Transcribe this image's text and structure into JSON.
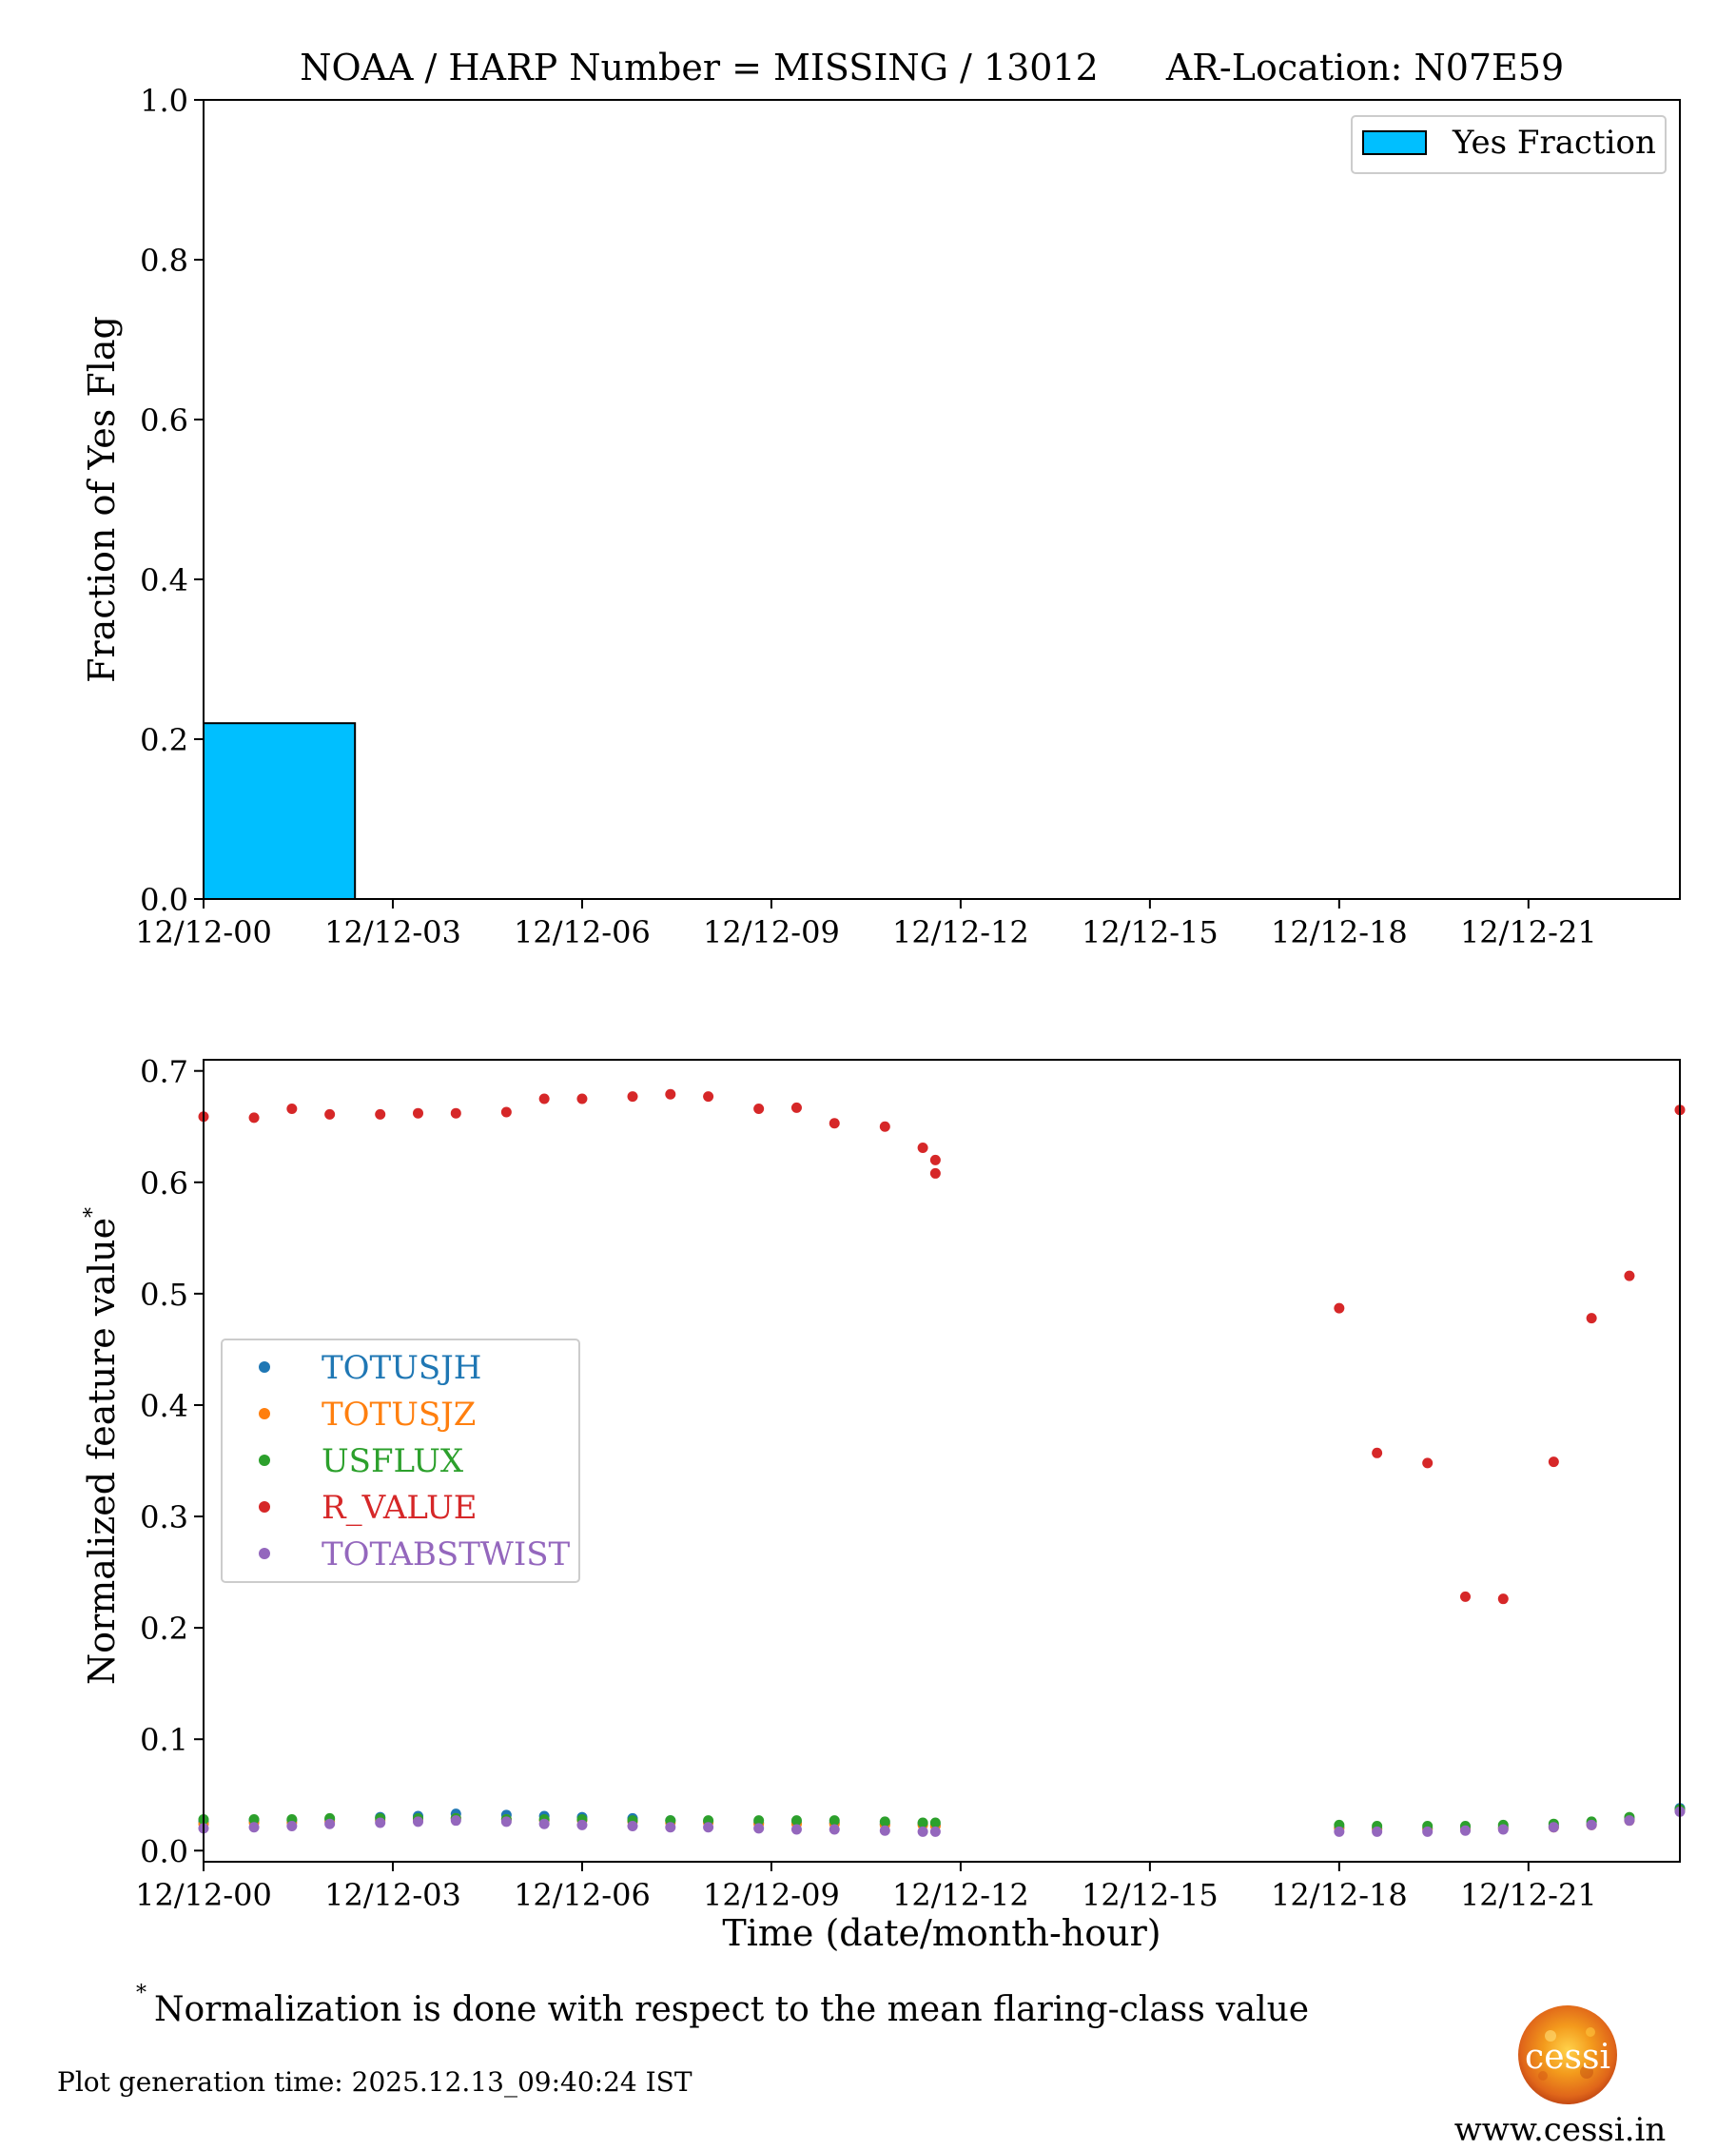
{
  "chart_data": [
    {
      "type": "bar",
      "title_left": "NOAA / HARP Number = MISSING / 13012",
      "title_right": "AR-Location: N07E59",
      "xlabel": "",
      "ylabel": "Fraction of Yes Flag",
      "ylim": [
        0,
        1.0
      ],
      "yticks": [
        "0.0",
        "0.2",
        "0.4",
        "0.6",
        "0.8",
        "1.0"
      ],
      "xticks": [
        "12/12-00",
        "12/12-03",
        "12/12-06",
        "12/12-09",
        "12/12-12",
        "12/12-15",
        "12/12-18",
        "12/12-21"
      ],
      "xlim_hours": [
        0,
        23.4
      ],
      "bars": [
        {
          "start_hour": 0,
          "end_hour": 2.4,
          "value": 0.22
        }
      ],
      "legend": {
        "label": "Yes Fraction",
        "position": "top-right"
      },
      "bar_color": "#00bfff"
    },
    {
      "type": "scatter",
      "xlabel": "Time (date/month-hour)",
      "ylabel": "Normalized feature value",
      "ylabel_sup": "*",
      "ylim": [
        -0.01,
        0.71
      ],
      "yticks": [
        "0.0",
        "0.1",
        "0.2",
        "0.3",
        "0.4",
        "0.5",
        "0.6",
        "0.7"
      ],
      "xticks": [
        "12/12-00",
        "12/12-03",
        "12/12-06",
        "12/12-09",
        "12/12-12",
        "12/12-15",
        "12/12-18",
        "12/12-21"
      ],
      "xlim_hours": [
        0,
        23.4
      ],
      "legend_position": "center-left",
      "series": [
        {
          "name": "TOTUSJH",
          "color": "#1f77b4",
          "points": [
            [
              0,
              0.026
            ],
            [
              0.8,
              0.027
            ],
            [
              1.4,
              0.027
            ],
            [
              2.0,
              0.028
            ],
            [
              2.8,
              0.03
            ],
            [
              3.4,
              0.031
            ],
            [
              4.0,
              0.033
            ],
            [
              4.8,
              0.032
            ],
            [
              5.4,
              0.031
            ],
            [
              6.0,
              0.03
            ],
            [
              6.8,
              0.029
            ],
            [
              7.4,
              0.027
            ],
            [
              8.0,
              0.026
            ],
            [
              8.8,
              0.025
            ],
            [
              9.4,
              0.025
            ],
            [
              10.0,
              0.025
            ],
            [
              10.8,
              0.024
            ],
            [
              11.4,
              0.024
            ],
            [
              11.6,
              0.023
            ],
            [
              18.0,
              0.021
            ],
            [
              18.6,
              0.02
            ],
            [
              19.4,
              0.02
            ],
            [
              20.0,
              0.02
            ],
            [
              20.6,
              0.021
            ],
            [
              21.4,
              0.022
            ],
            [
              22.0,
              0.024
            ],
            [
              22.6,
              0.028
            ],
            [
              23.4,
              0.038
            ]
          ]
        },
        {
          "name": "TOTUSJZ",
          "color": "#ff7f0e",
          "points": [
            [
              0,
              0.024
            ],
            [
              0.8,
              0.025
            ],
            [
              1.4,
              0.025
            ],
            [
              2.0,
              0.026
            ],
            [
              2.8,
              0.027
            ],
            [
              3.4,
              0.028
            ],
            [
              4.0,
              0.029
            ],
            [
              4.8,
              0.028
            ],
            [
              5.4,
              0.027
            ],
            [
              6.0,
              0.027
            ],
            [
              6.8,
              0.026
            ],
            [
              7.4,
              0.025
            ],
            [
              8.0,
              0.025
            ],
            [
              8.8,
              0.024
            ],
            [
              9.4,
              0.024
            ],
            [
              10.0,
              0.024
            ],
            [
              10.8,
              0.023
            ],
            [
              11.4,
              0.023
            ],
            [
              11.6,
              0.022
            ],
            [
              18.0,
              0.02
            ],
            [
              18.6,
              0.019
            ],
            [
              19.4,
              0.019
            ],
            [
              20.0,
              0.019
            ],
            [
              20.6,
              0.02
            ],
            [
              21.4,
              0.021
            ],
            [
              22.0,
              0.023
            ],
            [
              22.6,
              0.027
            ],
            [
              23.4,
              0.036
            ]
          ]
        },
        {
          "name": "USFLUX",
          "color": "#2ca02c",
          "points": [
            [
              0,
              0.028
            ],
            [
              0.8,
              0.028
            ],
            [
              1.4,
              0.028
            ],
            [
              2.0,
              0.029
            ],
            [
              2.8,
              0.029
            ],
            [
              3.4,
              0.029
            ],
            [
              4.0,
              0.029
            ],
            [
              4.8,
              0.028
            ],
            [
              5.4,
              0.028
            ],
            [
              6.0,
              0.028
            ],
            [
              6.8,
              0.027
            ],
            [
              7.4,
              0.027
            ],
            [
              8.0,
              0.027
            ],
            [
              8.8,
              0.027
            ],
            [
              9.4,
              0.027
            ],
            [
              10.0,
              0.027
            ],
            [
              10.8,
              0.026
            ],
            [
              11.4,
              0.025
            ],
            [
              11.6,
              0.025
            ],
            [
              18.0,
              0.023
            ],
            [
              18.6,
              0.022
            ],
            [
              19.4,
              0.022
            ],
            [
              20.0,
              0.022
            ],
            [
              20.6,
              0.023
            ],
            [
              21.4,
              0.024
            ],
            [
              22.0,
              0.026
            ],
            [
              22.6,
              0.03
            ],
            [
              23.4,
              0.037
            ]
          ]
        },
        {
          "name": "R_VALUE",
          "color": "#d62728",
          "points": [
            [
              0,
              0.659
            ],
            [
              0.8,
              0.658
            ],
            [
              1.4,
              0.666
            ],
            [
              2.0,
              0.661
            ],
            [
              2.8,
              0.661
            ],
            [
              3.4,
              0.662
            ],
            [
              4.0,
              0.662
            ],
            [
              4.8,
              0.663
            ],
            [
              5.4,
              0.675
            ],
            [
              6.0,
              0.675
            ],
            [
              6.8,
              0.677
            ],
            [
              7.4,
              0.679
            ],
            [
              8.0,
              0.677
            ],
            [
              8.8,
              0.666
            ],
            [
              9.4,
              0.667
            ],
            [
              10.0,
              0.653
            ],
            [
              10.8,
              0.65
            ],
            [
              11.4,
              0.631
            ],
            [
              11.6,
              0.62
            ],
            [
              11.6,
              0.608
            ],
            [
              18.0,
              0.487
            ],
            [
              18.6,
              0.357
            ],
            [
              19.4,
              0.348
            ],
            [
              20.0,
              0.228
            ],
            [
              20.6,
              0.226
            ],
            [
              21.4,
              0.349
            ],
            [
              22.0,
              0.478
            ],
            [
              22.6,
              0.516
            ],
            [
              23.4,
              0.665
            ]
          ]
        },
        {
          "name": "TOTABSTWIST",
          "color": "#9467bd",
          "points": [
            [
              0,
              0.02
            ],
            [
              0.8,
              0.021
            ],
            [
              1.4,
              0.022
            ],
            [
              2.0,
              0.024
            ],
            [
              2.8,
              0.025
            ],
            [
              3.4,
              0.026
            ],
            [
              4.0,
              0.027
            ],
            [
              4.8,
              0.026
            ],
            [
              5.4,
              0.024
            ],
            [
              6.0,
              0.023
            ],
            [
              6.8,
              0.022
            ],
            [
              7.4,
              0.021
            ],
            [
              8.0,
              0.021
            ],
            [
              8.8,
              0.02
            ],
            [
              9.4,
              0.019
            ],
            [
              10.0,
              0.019
            ],
            [
              10.8,
              0.018
            ],
            [
              11.4,
              0.017
            ],
            [
              11.6,
              0.017
            ],
            [
              18.0,
              0.017
            ],
            [
              18.6,
              0.017
            ],
            [
              19.4,
              0.017
            ],
            [
              20.0,
              0.018
            ],
            [
              20.6,
              0.019
            ],
            [
              21.4,
              0.021
            ],
            [
              22.0,
              0.023
            ],
            [
              22.6,
              0.027
            ],
            [
              23.4,
              0.035
            ]
          ]
        }
      ]
    }
  ],
  "footnote": {
    "marker": "*",
    "text": "Normalization is done with respect to the mean flaring-class value"
  },
  "generation_time": "Plot generation time: 2025.12.13_09:40:24 IST",
  "logo": {
    "text": "cessi",
    "url_text": "www.cessi.in"
  }
}
